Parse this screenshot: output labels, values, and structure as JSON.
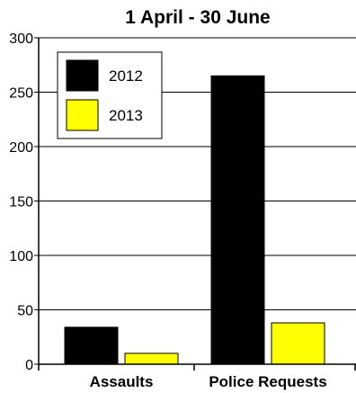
{
  "chart_data": {
    "type": "bar",
    "title": "1 April - 30 June",
    "categories": [
      "Assaults",
      "Police Requests"
    ],
    "series": [
      {
        "name": "2012",
        "values": [
          34,
          265
        ],
        "color": "#000000"
      },
      {
        "name": "2013",
        "values": [
          10,
          38
        ],
        "color": "#ffff00"
      }
    ],
    "ylim": [
      0,
      300
    ],
    "yticks": [
      0,
      50,
      100,
      150,
      200,
      250,
      300
    ],
    "xlabel": "",
    "ylabel": "",
    "grid": "horizontal",
    "legend_position": "top-left"
  }
}
